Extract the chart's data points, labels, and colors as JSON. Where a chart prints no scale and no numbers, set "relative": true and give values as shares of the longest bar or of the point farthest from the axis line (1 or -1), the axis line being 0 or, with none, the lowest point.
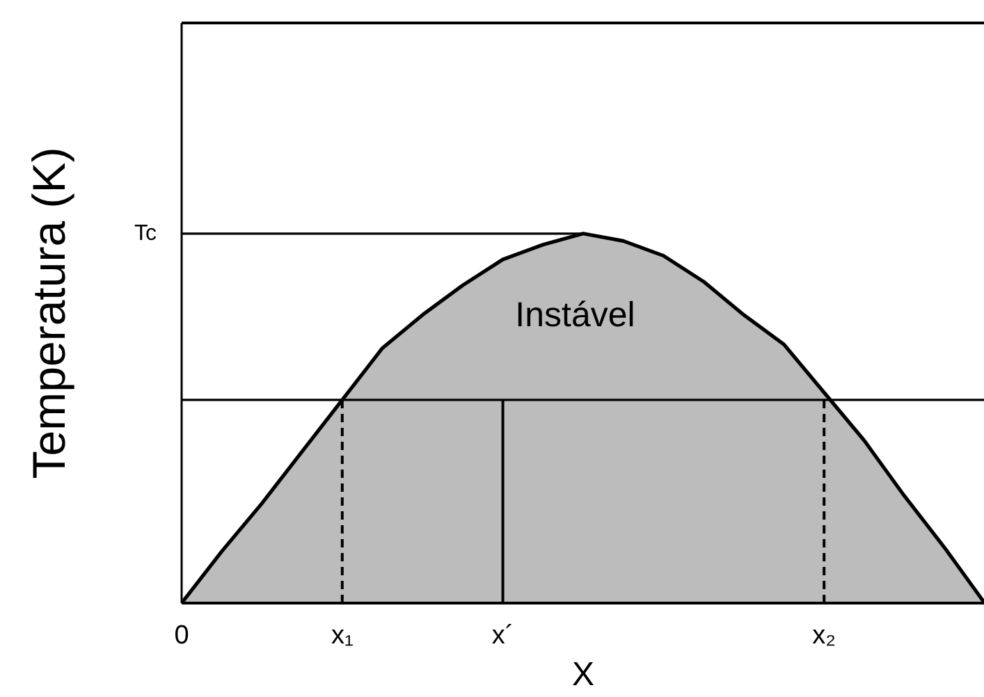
{
  "chart_data": {
    "type": "area",
    "relative": true,
    "xlabel": "X",
    "ylabel": "Temperatura (K)",
    "categories": [
      "0",
      null,
      null,
      null,
      "x₁",
      null,
      null,
      null,
      "x´",
      null,
      null,
      null,
      null,
      null,
      null,
      null,
      "x₂",
      null,
      null,
      null,
      null
    ],
    "series": [
      {
        "color": "#bcbcbc",
        "values": [
          0,
          0.14,
          0.27,
          0.41,
          0.55,
          0.69,
          0.78,
          0.86,
          0.93,
          0.97,
          1,
          0.98,
          0.94,
          0.87,
          0.78,
          0.7,
          0.57,
          0.44,
          0.29,
          0.15,
          0
        ]
      },
      {
        "type": "line",
        "color": "#000000",
        "line_style": "dashed",
        "x": [
          "x₁",
          "x₁"
        ],
        "values": [
          0,
          0.55
        ]
      },
      {
        "type": "line",
        "color": "#000000",
        "line_style": "solid",
        "x": [
          "x´",
          "x´"
        ],
        "values": [
          0,
          0.55
        ]
      },
      {
        "type": "line",
        "color": "#000000",
        "line_style": "dashed",
        "x": [
          "x₂",
          "x₂"
        ],
        "values": [
          0,
          0.55
        ]
      }
    ],
    "ref_lines": [
      {
        "axis": "y",
        "value": 1,
        "label": "Tc"
      },
      {
        "axis": "y",
        "value": 0.55
      }
    ],
    "annotations": [
      "Instável"
    ]
  }
}
